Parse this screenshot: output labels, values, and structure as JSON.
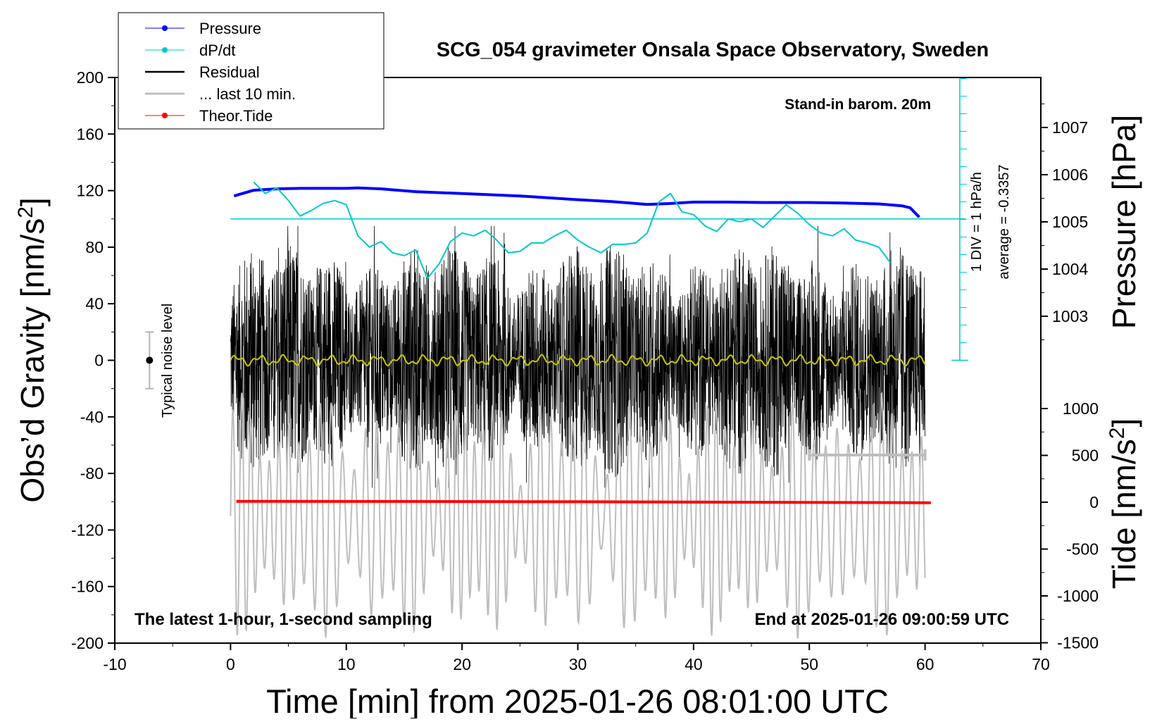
{
  "chart_data": {
    "type": "line",
    "title": "SCG_054 gravimeter Onsala Space Observatory, Sweden",
    "xlabel": "Time [min] from 2025-01-26 08:01:00 UTC",
    "xlim": [
      -10,
      70
    ],
    "x_ticks": [
      -10,
      0,
      10,
      20,
      30,
      40,
      50,
      60,
      70
    ],
    "y_left": {
      "label_main": "Obs’d Gravity [nm/s",
      "label_sup": "2",
      "label_end": "]",
      "ylim": [
        -200,
        200
      ],
      "ticks": [
        200,
        160,
        120,
        80,
        40,
        0,
        -40,
        -80,
        -120,
        -160,
        -200
      ]
    },
    "y_right_pressure": {
      "label": "Pressure [hPa]",
      "ticks": [
        1007,
        1006,
        1005,
        1004,
        1003
      ]
    },
    "y_right_tide": {
      "label_main": "Tide [nm/s",
      "label_sup": "2",
      "label_end": "]",
      "ticks": [
        1000,
        500,
        0,
        -500,
        -1000,
        -1500
      ]
    },
    "legend": {
      "placement": "top-left",
      "entries": [
        {
          "name": "Pressure",
          "color": "#0000ff",
          "marker": true
        },
        {
          "name": "dP/dt",
          "color": "#00c8c8",
          "marker": true
        },
        {
          "name": "Residual",
          "color": "#000000",
          "marker": false
        },
        {
          "name": "... last 10 min.",
          "color": "#bebebe",
          "marker": false
        },
        {
          "name": "Theor.Tide",
          "color": "#ff0000",
          "marker": true
        }
      ]
    },
    "annotations": {
      "stand_in": "Stand-in barom. 20m",
      "div_label": "1 DIV = 1 hPa/h",
      "average_label": "average = -0.3357",
      "noise_label": "Typical noise level",
      "bottom_left": "The latest 1-hour, 1-second sampling",
      "bottom_right": "End at 2025-01-26 09:00:59 UTC"
    },
    "series": [
      {
        "name": "Pressure",
        "axis": "pressure_hPa",
        "color": "#0000ff",
        "x": [
          0.3,
          2,
          4,
          6,
          8,
          10,
          11,
          13,
          16,
          20,
          25,
          30,
          33,
          36,
          38,
          40,
          43,
          46,
          50,
          53,
          56,
          58,
          58.7,
          59.5
        ],
        "values": [
          1005.55,
          1005.67,
          1005.7,
          1005.71,
          1005.71,
          1005.71,
          1005.72,
          1005.7,
          1005.64,
          1005.6,
          1005.55,
          1005.47,
          1005.43,
          1005.37,
          1005.39,
          1005.42,
          1005.42,
          1005.41,
          1005.41,
          1005.4,
          1005.38,
          1005.34,
          1005.3,
          1005.1
        ]
      },
      {
        "name": "dP/dt",
        "axis": "gravity_scaled",
        "color": "#00c8c8",
        "x": [
          2,
          3,
          4,
          5,
          6,
          7,
          8,
          9,
          10,
          11,
          12,
          13,
          14,
          15,
          16,
          17,
          18,
          19,
          20,
          21,
          22,
          23,
          24,
          25,
          26,
          27,
          28,
          29,
          30,
          31,
          32,
          33,
          34,
          35,
          36,
          37,
          38,
          39,
          40,
          41,
          42,
          43,
          44,
          45,
          46,
          47,
          48,
          49,
          50,
          51,
          52,
          53,
          54,
          55,
          56,
          57
        ],
        "values": [
          126,
          118,
          122,
          113,
          102,
          106,
          111,
          113,
          110,
          88,
          80,
          84,
          76,
          74,
          78,
          58,
          68,
          84,
          90,
          88,
          92,
          85,
          76,
          77,
          83,
          83,
          88,
          92,
          85,
          80,
          76,
          82,
          82,
          83,
          90,
          112,
          118,
          105,
          103,
          95,
          91,
          100,
          98,
          100,
          94,
          102,
          110,
          104,
          96,
          90,
          88,
          93,
          85,
          83,
          80,
          69
        ]
      },
      {
        "name": "Theor.Tide",
        "axis": "tide",
        "color": "#ff0000",
        "x": [
          0.5,
          15,
          30,
          45,
          60.5
        ],
        "values": [
          10,
          8,
          5,
          0,
          -5
        ]
      }
    ],
    "residual": {
      "x_start": 0,
      "x_end": 60,
      "amplitude_approx": 70,
      "mean": 0
    },
    "last_10_min": {
      "x_start": 0,
      "x_end": 60,
      "center": -110,
      "amplitude_approx": 70
    },
    "residual_smoothed": {
      "color": "#c8c800",
      "level": 0
    },
    "noise_bar": {
      "x": -7,
      "center": 0,
      "half_range": 20
    },
    "last10_bracket": {
      "x_start": 50,
      "x_end": 60,
      "level": -67
    }
  }
}
